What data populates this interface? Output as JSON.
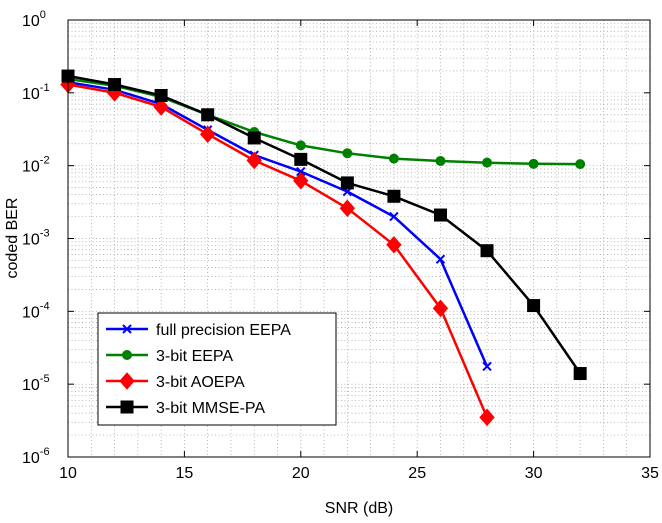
{
  "chart_data": {
    "type": "line",
    "xlabel": "SNR (dB)",
    "ylabel": "coded BER",
    "xlim": [
      10,
      35
    ],
    "ylim": [
      1e-06,
      1
    ],
    "yscale": "log",
    "grid": true,
    "legend_position": "bottom-left",
    "x_ticks": [
      "10",
      "15",
      "20",
      "25",
      "30",
      "35"
    ],
    "y_tick_base": "10",
    "y_tick_exponents": [
      "0",
      "-1",
      "-2",
      "-3",
      "-4",
      "-5",
      "-6"
    ],
    "series": [
      {
        "name": "full precision EEPA",
        "color": "#0000ff",
        "marker": "x-mark",
        "x": [
          10,
          12,
          14,
          16,
          18,
          20,
          22,
          24,
          26,
          28
        ],
        "y": [
          0.14,
          0.11,
          0.07,
          0.031,
          0.014,
          0.0083,
          0.0044,
          0.002,
          0.00052,
          1.75e-05
        ]
      },
      {
        "name": "3-bit EEPA",
        "color": "#008000",
        "marker": "circle",
        "x": [
          10,
          12,
          14,
          16,
          18,
          20,
          22,
          24,
          26,
          28,
          30,
          32
        ],
        "y": [
          0.155,
          0.125,
          0.088,
          0.05,
          0.029,
          0.019,
          0.0148,
          0.0125,
          0.0116,
          0.011,
          0.0106,
          0.0105
        ]
      },
      {
        "name": "3-bit AOEPA",
        "color": "#ff0000",
        "marker": "diamond",
        "x": [
          10,
          12,
          14,
          16,
          18,
          20,
          22,
          24,
          26,
          28
        ],
        "y": [
          0.13,
          0.1,
          0.064,
          0.027,
          0.0118,
          0.0062,
          0.0026,
          0.00082,
          0.00011,
          3.5e-06
        ]
      },
      {
        "name": "3-bit MMSE-PA",
        "color": "#000000",
        "marker": "square",
        "x": [
          10,
          12,
          14,
          16,
          18,
          20,
          22,
          24,
          26,
          28,
          30,
          32
        ],
        "y": [
          0.17,
          0.13,
          0.092,
          0.05,
          0.024,
          0.0122,
          0.0058,
          0.0038,
          0.0021,
          0.00068,
          0.00012,
          1.4e-05
        ]
      }
    ]
  }
}
